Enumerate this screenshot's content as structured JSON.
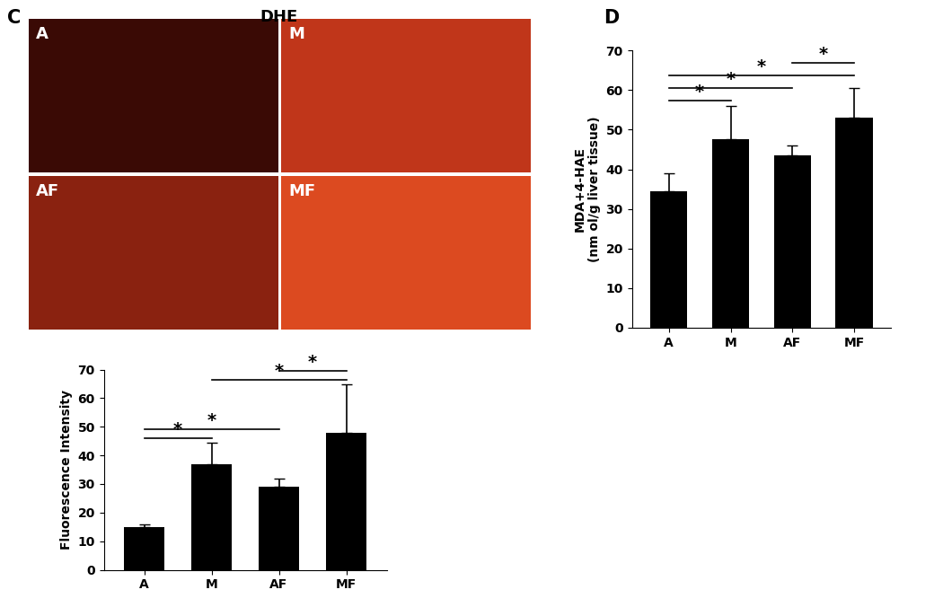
{
  "chart_data": [
    {
      "type": "bar",
      "panel_label": "C",
      "image_title": "DHE",
      "image_labels": [
        "A",
        "M",
        "AF",
        "MF"
      ],
      "categories": [
        "A",
        "M",
        "AF",
        "MF"
      ],
      "values": [
        15,
        37,
        29,
        48
      ],
      "errors": [
        1,
        7.5,
        3,
        17
      ],
      "color": "#000000",
      "y_label": "Fluorescence Intensity",
      "ylim": [
        0,
        70
      ],
      "yticks": [
        0,
        10,
        20,
        30,
        40,
        50,
        60,
        70
      ],
      "annotations": [
        {
          "from": "A",
          "to": "M",
          "label": "*"
        },
        {
          "from": "A",
          "to": "AF",
          "label": "*"
        },
        {
          "from": "M",
          "to": "MF",
          "label": "*"
        },
        {
          "from": "AF",
          "to": "MF",
          "label": "*"
        }
      ]
    },
    {
      "type": "bar",
      "panel_label": "D",
      "categories": [
        "A",
        "M",
        "AF",
        "MF"
      ],
      "values": [
        34.5,
        47.5,
        43.5,
        53
      ],
      "errors": [
        4.5,
        8.5,
        2.5,
        7.5
      ],
      "color": "#000000",
      "y_label": "MDA+4-HAE\n(nm ol/g liver tissue)",
      "ylim": [
        0,
        70
      ],
      "yticks": [
        0,
        10,
        20,
        30,
        40,
        50,
        60,
        70
      ],
      "annotations": [
        {
          "from": "A",
          "to": "M",
          "label": "*"
        },
        {
          "from": "A",
          "to": "AF",
          "label": "*"
        },
        {
          "from": "A",
          "to": "MF",
          "label": "*"
        },
        {
          "from": "AF",
          "to": "MF",
          "label": "*"
        }
      ]
    }
  ]
}
